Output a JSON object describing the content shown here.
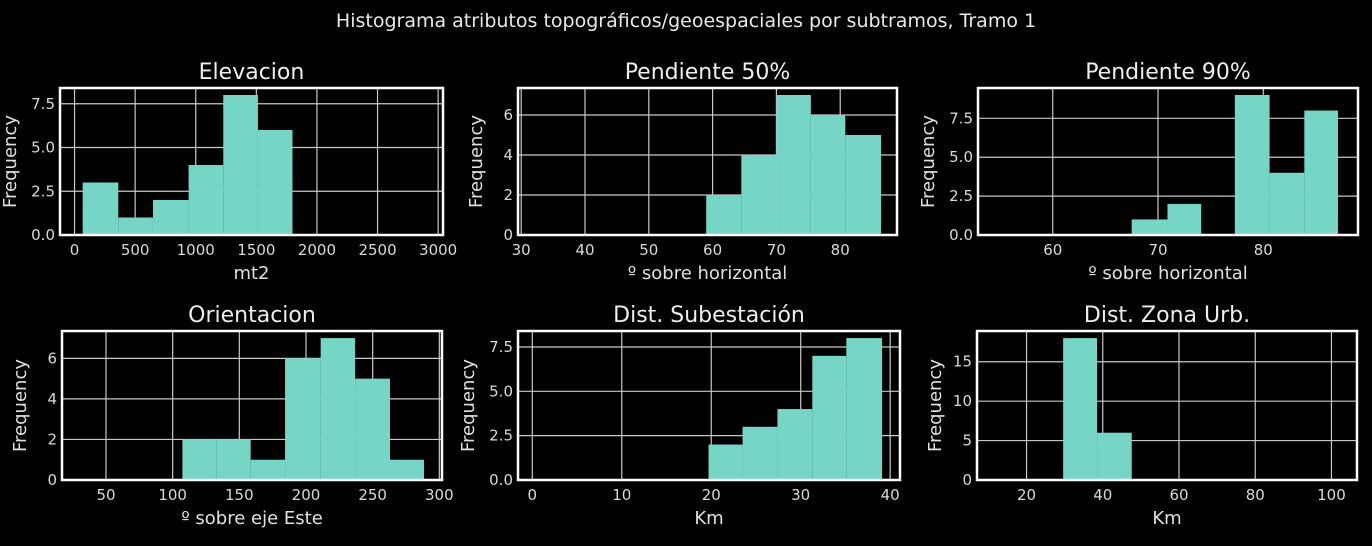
{
  "chart_data": {
    "title": "Histograma atributos topográficos/geoespaciales por subtramos, Tramo 1",
    "colors": {
      "bar": "#76d6c6",
      "background": "#000000",
      "frame": "#ffffff",
      "grid": "#c8c8c8"
    },
    "panels": [
      {
        "type": "bar",
        "title": "Elevacion",
        "xlabel": "mt2",
        "ylabel": "Frequency",
        "xlim": [
          -120,
          3040
        ],
        "ylim": [
          0,
          8.4
        ],
        "xticks": [
          0,
          500,
          1000,
          1500,
          2000,
          2500,
          3000
        ],
        "xtick_labels": [
          "0",
          "500",
          "1000",
          "1500",
          "2000",
          "2500",
          "3000"
        ],
        "yticks": [
          0,
          2.5,
          5,
          7.5
        ],
        "ytick_labels": [
          "0.0",
          "2.5",
          "5.0",
          "7.5"
        ],
        "bin_edges": [
          67,
          361,
          647,
          941,
          1227,
          1513,
          1798
        ],
        "counts": [
          3,
          1,
          2,
          4,
          8,
          6
        ]
      },
      {
        "type": "bar",
        "title": "Pendiente 50%",
        "xlabel": "º sobre horizontal",
        "ylabel": "Frequency",
        "xlim": [
          29.5,
          88.9
        ],
        "ylim": [
          0,
          7.35
        ],
        "xticks": [
          30,
          40,
          50,
          60,
          70,
          80
        ],
        "xtick_labels": [
          "30",
          "40",
          "50",
          "60",
          "70",
          "80"
        ],
        "yticks": [
          0,
          2,
          4,
          6
        ],
        "ytick_labels": [
          "0",
          "2",
          "4",
          "6"
        ],
        "bin_edges": [
          59.0,
          64.5,
          70.0,
          75.4,
          80.8,
          86.4
        ],
        "counts": [
          2,
          4,
          7,
          6,
          5
        ]
      },
      {
        "type": "bar",
        "title": "Pendiente 90%",
        "xlabel": "º sobre horizontal",
        "ylabel": "Frequency",
        "xlim": [
          52.9,
          89.0
        ],
        "ylim": [
          0,
          9.45
        ],
        "xticks": [
          60,
          70,
          80
        ],
        "xtick_labels": [
          "60",
          "70",
          "80"
        ],
        "yticks": [
          0,
          2.5,
          5,
          7.5
        ],
        "ytick_labels": [
          "0.0",
          "2.5",
          "5.0",
          "7.5"
        ],
        "bin_edges": [
          67.5,
          70.9,
          74.1,
          77.3,
          80.6,
          83.9,
          87.1
        ],
        "counts": [
          1,
          2,
          0,
          9,
          4,
          8
        ]
      },
      {
        "type": "bar",
        "title": "Orientacion",
        "xlabel": "º sobre eje Este",
        "ylabel": "Frequency",
        "xlim": [
          17,
          302
        ],
        "ylim": [
          0,
          7.35
        ],
        "xticks": [
          50,
          100,
          150,
          200,
          250,
          300
        ],
        "xtick_labels": [
          "50",
          "100",
          "150",
          "200",
          "250",
          "300"
        ],
        "yticks": [
          0,
          2,
          4,
          6
        ],
        "ytick_labels": [
          "0",
          "2",
          "4",
          "6"
        ],
        "bin_edges": [
          107.3,
          133.0,
          158.5,
          184.3,
          211.0,
          236.8,
          263.0,
          288.5
        ],
        "counts": [
          2,
          2,
          1,
          6,
          7,
          5,
          1
        ]
      },
      {
        "type": "bar",
        "title": "Dist. Subestación",
        "xlabel": "Km",
        "ylabel": "Frequency",
        "xlim": [
          -1.6,
          41.1
        ],
        "ylim": [
          0,
          8.4
        ],
        "xticks": [
          0,
          10,
          20,
          30,
          40
        ],
        "xtick_labels": [
          "0",
          "10",
          "20",
          "30",
          "40"
        ],
        "yticks": [
          0,
          2.5,
          5,
          7.5
        ],
        "ytick_labels": [
          "0.0",
          "2.5",
          "5.0",
          "7.5"
        ],
        "bin_edges": [
          19.7,
          23.5,
          27.4,
          31.3,
          35.1,
          39.1
        ],
        "counts": [
          2,
          3,
          4,
          7,
          8
        ]
      },
      {
        "type": "bar",
        "title": "Dist. Zona Urb.",
        "xlabel": "Km",
        "ylabel": "Frequency",
        "xlim": [
          7,
          106.7
        ],
        "ylim": [
          0,
          18.9
        ],
        "xticks": [
          20,
          40,
          60,
          80,
          100
        ],
        "xtick_labels": [
          "20",
          "40",
          "60",
          "80",
          "100"
        ],
        "yticks": [
          0,
          5,
          10,
          15
        ],
        "ytick_labels": [
          "0",
          "5",
          "10",
          "15"
        ],
        "bin_edges": [
          29.6,
          38.5,
          47.6
        ],
        "counts": [
          18,
          6
        ]
      }
    ]
  }
}
